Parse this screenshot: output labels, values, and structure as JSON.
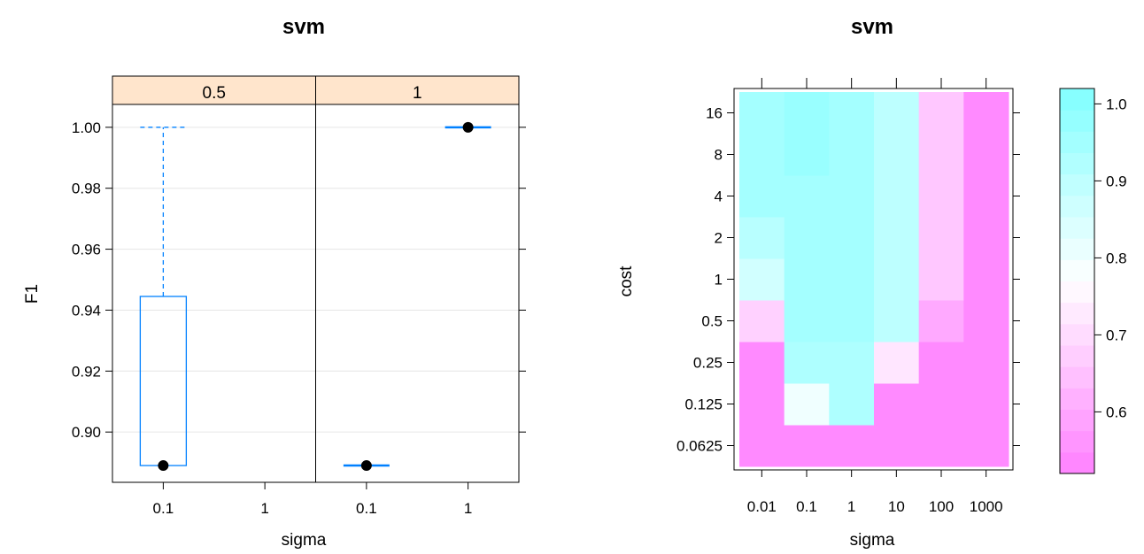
{
  "chart_data": [
    {
      "type": "box",
      "title": "svm",
      "xlabel": "sigma",
      "ylabel": "F1",
      "ylim": [
        0.8835,
        1.0075
      ],
      "yticks": [
        "0.90",
        "0.92",
        "0.94",
        "0.96",
        "0.98",
        "1.00"
      ],
      "categories": [
        "0.1",
        "1"
      ],
      "panels": [
        {
          "strip": "0.5",
          "boxes": [
            {
              "x": "0.1",
              "min": 0.889,
              "q1": 0.889,
              "median": 0.889,
              "q3": 0.9445,
              "max": 1.0
            }
          ]
        },
        {
          "strip": "1",
          "boxes": [
            {
              "x": "0.1",
              "min": 0.889,
              "q1": 0.889,
              "median": 0.889,
              "q3": 0.889,
              "max": 0.889
            },
            {
              "x": "1",
              "min": 1.0,
              "q1": 1.0,
              "median": 1.0,
              "q3": 1.0,
              "max": 1.0
            }
          ]
        }
      ],
      "colors": {
        "box": "#0080ff",
        "strip": "#ffe5cc",
        "median_dot": "#000000",
        "grid": "#e6e6e6"
      }
    },
    {
      "type": "heatmap",
      "title": "svm",
      "xlabel": "sigma",
      "ylabel": "cost",
      "x": [
        "0.01",
        "0.1",
        "1",
        "10",
        "100",
        "1000"
      ],
      "y": [
        "0.0625",
        "0.125",
        "0.25",
        "0.5",
        "1",
        "2",
        "4",
        "8",
        "16"
      ],
      "values": [
        [
          0.54,
          0.54,
          0.54,
          0.54,
          0.54,
          0.54
        ],
        [
          0.54,
          0.8,
          0.93,
          0.54,
          0.54,
          0.54
        ],
        [
          0.54,
          0.93,
          0.93,
          0.72,
          0.54,
          0.54
        ],
        [
          0.68,
          0.95,
          0.95,
          0.9,
          0.6,
          0.54
        ],
        [
          0.86,
          0.95,
          0.95,
          0.9,
          0.66,
          0.54
        ],
        [
          0.91,
          0.95,
          0.95,
          0.9,
          0.66,
          0.54
        ],
        [
          0.95,
          0.95,
          0.95,
          0.9,
          0.66,
          0.54
        ],
        [
          0.95,
          0.97,
          0.95,
          0.9,
          0.66,
          0.54
        ],
        [
          0.95,
          0.97,
          0.95,
          0.9,
          0.66,
          0.54
        ]
      ],
      "colorkey": {
        "range": [
          0.52,
          1.02
        ],
        "ticks": [
          "0.6",
          "0.7",
          "0.8",
          "0.9",
          "1.0"
        ],
        "low_color": "#ff80ff",
        "mid_color": "#ffffff",
        "high_color": "#80ffff"
      }
    }
  ]
}
